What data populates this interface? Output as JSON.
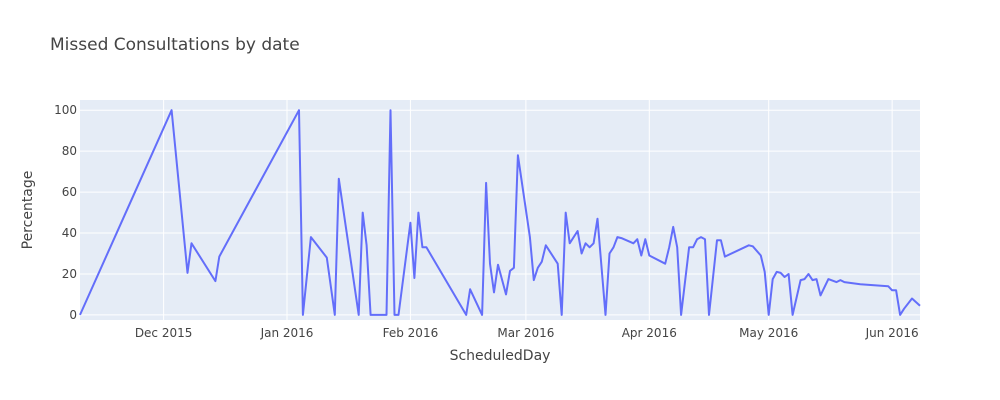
{
  "chart_data": {
    "type": "line",
    "title": "Missed Consultations by date",
    "xlabel": "ScheduledDay",
    "ylabel": "Percentage",
    "x_range": [
      "2015-11-10",
      "2016-06-08"
    ],
    "ylim": [
      -2.5,
      105
    ],
    "x_ticks": [
      {
        "date": "2015-12-01",
        "label": "Dec 2015"
      },
      {
        "date": "2016-01-01",
        "label": "Jan 2016"
      },
      {
        "date": "2016-02-01",
        "label": "Feb 2016"
      },
      {
        "date": "2016-03-01",
        "label": "Mar 2016"
      },
      {
        "date": "2016-04-01",
        "label": "Apr 2016"
      },
      {
        "date": "2016-05-01",
        "label": "May 2016"
      },
      {
        "date": "2016-06-01",
        "label": "Jun 2016"
      }
    ],
    "y_ticks": [
      0,
      20,
      40,
      60,
      80,
      100
    ],
    "grid": true,
    "colors": {
      "line": "#636efa",
      "plot_bg": "#e5ecf6",
      "grid": "#ffffff"
    },
    "series": [
      {
        "x": [
          "2015-11-10",
          "2015-12-03",
          "2015-12-07",
          "2015-12-08",
          "2015-12-14",
          "2015-12-15",
          "2016-01-04",
          "2016-01-05",
          "2016-01-07",
          "2016-01-11",
          "2016-01-13",
          "2016-01-14",
          "2016-01-19",
          "2016-01-20",
          "2016-01-21",
          "2016-01-22",
          "2016-01-25",
          "2016-01-26",
          "2016-01-27",
          "2016-01-28",
          "2016-01-29",
          "2016-02-01",
          "2016-02-02",
          "2016-02-03",
          "2016-02-04",
          "2016-02-05",
          "2016-02-15",
          "2016-02-16",
          "2016-02-19",
          "2016-02-20",
          "2016-02-21",
          "2016-02-22",
          "2016-02-23",
          "2016-02-25",
          "2016-02-26",
          "2016-02-27",
          "2016-02-28",
          "2016-03-02",
          "2016-03-03",
          "2016-03-04",
          "2016-03-05",
          "2016-03-06",
          "2016-03-09",
          "2016-03-10",
          "2016-03-11",
          "2016-03-12",
          "2016-03-14",
          "2016-03-15",
          "2016-03-16",
          "2016-03-17",
          "2016-03-18",
          "2016-03-19",
          "2016-03-21",
          "2016-03-22",
          "2016-03-23",
          "2016-03-24",
          "2016-03-25",
          "2016-03-28",
          "2016-03-29",
          "2016-03-30",
          "2016-03-31",
          "2016-04-01",
          "2016-04-05",
          "2016-04-06",
          "2016-04-07",
          "2016-04-08",
          "2016-04-09",
          "2016-04-11",
          "2016-04-12",
          "2016-04-13",
          "2016-04-14",
          "2016-04-15",
          "2016-04-16",
          "2016-04-18",
          "2016-04-19",
          "2016-04-20",
          "2016-04-26",
          "2016-04-27",
          "2016-04-29",
          "2016-04-30",
          "2016-05-01",
          "2016-05-02",
          "2016-05-03",
          "2016-05-04",
          "2016-05-05",
          "2016-05-06",
          "2016-05-07",
          "2016-05-09",
          "2016-05-10",
          "2016-05-11",
          "2016-05-12",
          "2016-05-13",
          "2016-05-14",
          "2016-05-16",
          "2016-05-18",
          "2016-05-19",
          "2016-05-20",
          "2016-05-24",
          "2016-05-31",
          "2016-06-01",
          "2016-06-02",
          "2016-06-03",
          "2016-06-04",
          "2016-06-06",
          "2016-06-08"
        ],
        "y": [
          0,
          100,
          20.5,
          35,
          16.5,
          28.5,
          100,
          0,
          38,
          28,
          0,
          66.5,
          0,
          50,
          34,
          0,
          0,
          0,
          100,
          0,
          0,
          45,
          18,
          50,
          33,
          33,
          0,
          12.5,
          0,
          64.5,
          25,
          11,
          24.5,
          10,
          21.5,
          23,
          78,
          38,
          17,
          23,
          26,
          34,
          25,
          0,
          50,
          35,
          41,
          30,
          35,
          33,
          35,
          47,
          0,
          30,
          33,
          38,
          37.5,
          35,
          37,
          29,
          37,
          29,
          25,
          33,
          43,
          33,
          0,
          33,
          33,
          37,
          38,
          37,
          0,
          36.5,
          36.5,
          28.5,
          34,
          33.5,
          29,
          21,
          0,
          17.5,
          21,
          20.5,
          18.5,
          20,
          0,
          17,
          17.5,
          20,
          17,
          17.5,
          9.5,
          17.5,
          16,
          17,
          16,
          15,
          14,
          12,
          12,
          0,
          3,
          8,
          4.5
        ]
      }
    ]
  }
}
